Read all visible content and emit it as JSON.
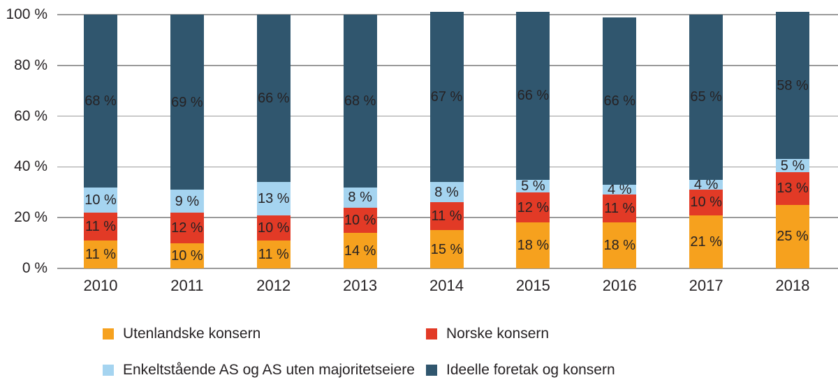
{
  "chart_data": {
    "type": "bar",
    "stacked": true,
    "orientation": "vertical",
    "categories": [
      "2010",
      "2011",
      "2012",
      "2013",
      "2014",
      "2015",
      "2016",
      "2017",
      "2018"
    ],
    "series": [
      {
        "name": "Utenlandske konsern",
        "color": "#F6A11E",
        "values": [
          11,
          10,
          11,
          14,
          15,
          18,
          18,
          21,
          25
        ]
      },
      {
        "name": "Norske konsern",
        "color": "#E23A26",
        "values": [
          11,
          12,
          10,
          10,
          11,
          12,
          11,
          10,
          13
        ]
      },
      {
        "name": "Enkeltstående AS og AS uten majoritetseiere",
        "color": "#A5D4F0",
        "values": [
          10,
          9,
          13,
          8,
          8,
          5,
          4,
          4,
          5
        ]
      },
      {
        "name": "Ideelle foretak og konsern",
        "color": "#30566E",
        "values": [
          68,
          69,
          66,
          68,
          67,
          66,
          66,
          65,
          58
        ]
      }
    ],
    "value_label_format": "{v} %",
    "y_axis": {
      "tick_labels": [
        "0 %",
        "20 %",
        "40 %",
        "60 %",
        "80 %",
        "100 %"
      ],
      "tick_values": [
        0,
        20,
        40,
        60,
        80,
        100
      ],
      "range": [
        0,
        100
      ]
    },
    "grid": true,
    "gridline_color": "#9a9a9a",
    "legend_position": "bottom",
    "legend_columns": 2,
    "text_color": "#262224"
  }
}
